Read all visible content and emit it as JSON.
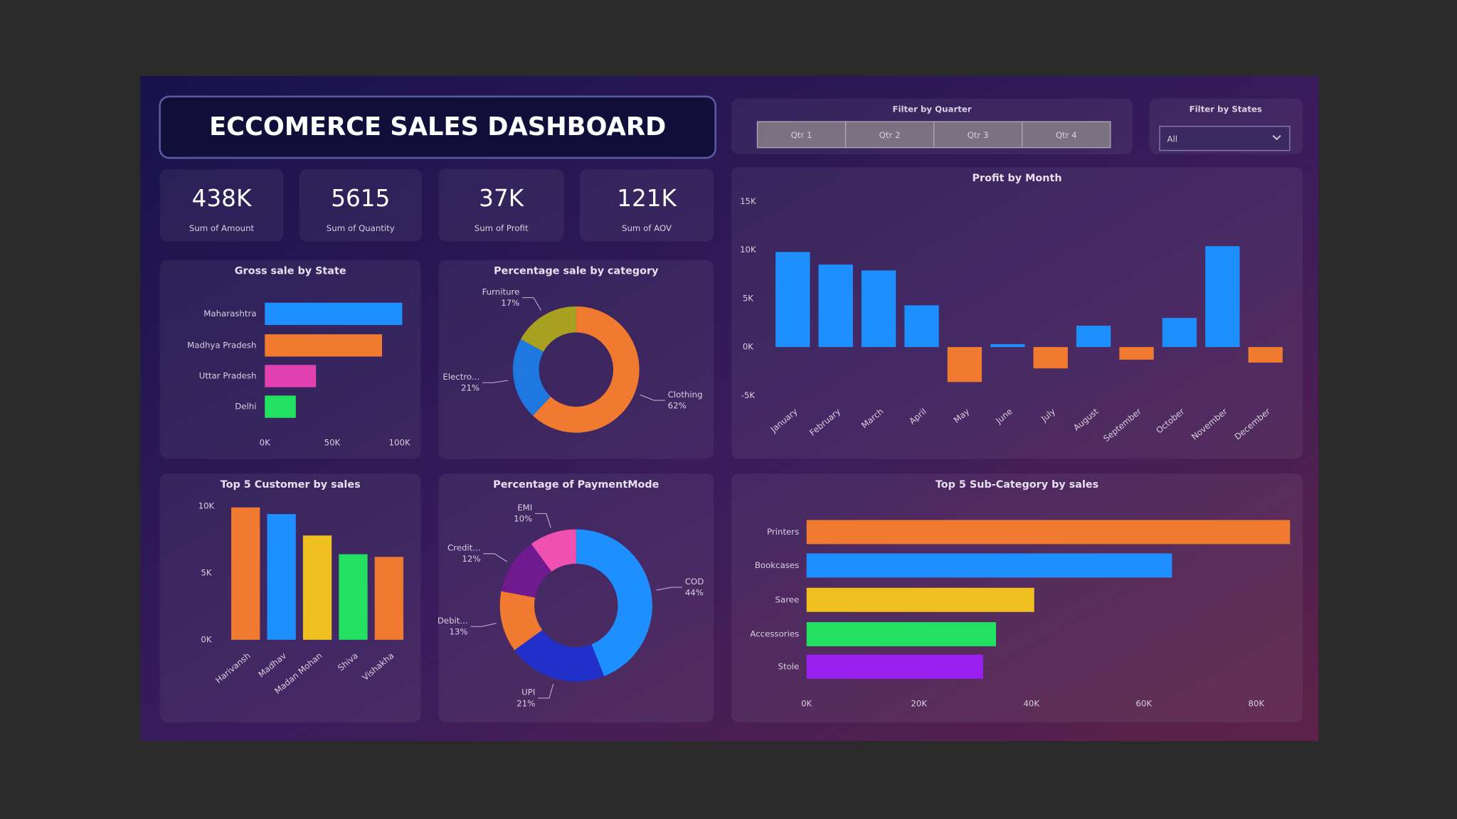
{
  "header": {
    "title": "ECCOMERCE SALES DASHBOARD"
  },
  "filters": {
    "quarter": {
      "label": "Filter by Quarter",
      "options": [
        "Qtr 1",
        "Qtr 2",
        "Qtr 3",
        "Qtr 4"
      ]
    },
    "state": {
      "label": "Filter by States",
      "value": "All"
    }
  },
  "kpis": [
    {
      "value": "438K",
      "label": "Sum of Amount"
    },
    {
      "value": "5615",
      "label": "Sum of Quantity"
    },
    {
      "value": "37K",
      "label": "Sum of Profit"
    },
    {
      "value": "121K",
      "label": "Sum of AOV"
    }
  ],
  "chart_data": [
    {
      "type": "hbar",
      "title": "Gross sale by State",
      "categories": [
        "Maharashtra",
        "Madhya Pradesh",
        "Uttar Pradesh",
        "Delhi"
      ],
      "values": [
        102000,
        87000,
        38000,
        23000
      ],
      "colors": [
        "#1e8fff",
        "#f07a30",
        "#e040b0",
        "#22e060"
      ],
      "xlim": [
        0,
        100000
      ],
      "xticks": [
        {
          "value": 0,
          "label": "0K"
        },
        {
          "value": 50000,
          "label": "50K"
        },
        {
          "value": 100000,
          "label": "100K"
        }
      ]
    },
    {
      "type": "pie",
      "title": "Percentage sale by category",
      "categories": [
        "Clothing",
        "Electro...",
        "Furniture"
      ],
      "values": [
        62,
        21,
        17
      ],
      "value_labels": [
        "62%",
        "21%",
        "17%"
      ],
      "colors": [
        "#f07a30",
        "#1e78e0",
        "#a8a020"
      ]
    },
    {
      "type": "bar",
      "title": "Profit by Month",
      "categories": [
        "January",
        "February",
        "March",
        "April",
        "May",
        "June",
        "July",
        "August",
        "September",
        "October",
        "November",
        "December"
      ],
      "values": [
        9800,
        8500,
        7900,
        4300,
        -3600,
        300,
        -2200,
        2200,
        -1300,
        3000,
        10400,
        -1600
      ],
      "color": "#1e8fff",
      "negative_color": "#f07a30",
      "ylim": [
        -5000,
        15000
      ],
      "yticks": [
        {
          "value": -5000,
          "label": "-5K"
        },
        {
          "value": 0,
          "label": "0K"
        },
        {
          "value": 5000,
          "label": "5K"
        },
        {
          "value": 10000,
          "label": "10K"
        },
        {
          "value": 15000,
          "label": "15K"
        }
      ]
    },
    {
      "type": "bar",
      "title": "Top 5 Customer by sales",
      "categories": [
        "Harivansh",
        "Madhav",
        "Madan Mohan",
        "Shiva",
        "Vishakha"
      ],
      "values": [
        9900,
        9400,
        7800,
        6400,
        6200
      ],
      "colors": [
        "#f07a30",
        "#1e8fff",
        "#f0c020",
        "#22e060",
        "#f07a30"
      ],
      "ylim": [
        0,
        10000
      ],
      "yticks": [
        {
          "value": 0,
          "label": "0K"
        },
        {
          "value": 5000,
          "label": "5K"
        },
        {
          "value": 10000,
          "label": "10K"
        }
      ]
    },
    {
      "type": "pie",
      "title": "Percentage of PaymentMode",
      "categories": [
        "COD",
        "UPI",
        "Debit...",
        "Credit...",
        "EMI"
      ],
      "values": [
        44,
        21,
        13,
        12,
        10
      ],
      "value_labels": [
        "44%",
        "21%",
        "13%",
        "12%",
        "10%"
      ],
      "colors": [
        "#1e8fff",
        "#2030c8",
        "#f07a30",
        "#701a90",
        "#f050b0"
      ]
    },
    {
      "type": "hbar",
      "title": "Top 5 Sub-Category by sales",
      "categories": [
        "Printers",
        "Bookcases",
        "Saree",
        "Accessories",
        "Stole"
      ],
      "values": [
        86000,
        65000,
        40500,
        33700,
        31400
      ],
      "colors": [
        "#f07a30",
        "#1e8fff",
        "#f0c020",
        "#22e060",
        "#9a20f0"
      ],
      "xlim": [
        0,
        80000
      ],
      "xticks": [
        {
          "value": 0,
          "label": "0K"
        },
        {
          "value": 20000,
          "label": "20K"
        },
        {
          "value": 40000,
          "label": "40K"
        },
        {
          "value": 60000,
          "label": "60K"
        },
        {
          "value": 80000,
          "label": "80K"
        }
      ]
    }
  ]
}
